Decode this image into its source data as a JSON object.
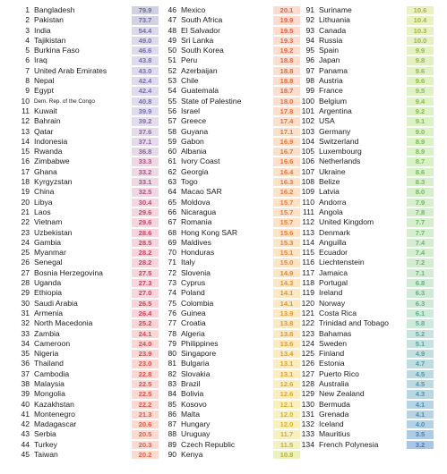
{
  "columns": [
    {
      "rows": [
        [
          "1",
          "Bangladesh",
          "79.9"
        ],
        [
          "2",
          "Pakistan",
          "73.7"
        ],
        [
          "3",
          "India",
          "54.4"
        ],
        [
          "4",
          "Tajikistan",
          "49.0"
        ],
        [
          "5",
          "Burkina Faso",
          "46.6"
        ],
        [
          "6",
          "Iraq",
          "43.8"
        ],
        [
          "7",
          "United Arab Emirates",
          "43.0"
        ],
        [
          "8",
          "Nepal",
          "42.4"
        ],
        [
          "9",
          "Egypt",
          "42.4"
        ],
        [
          "10",
          "Dem. Rep. of the Congo",
          "40.8"
        ],
        [
          "11",
          "Kuwait",
          "39.9"
        ],
        [
          "12",
          "Bahrain",
          "39.2"
        ],
        [
          "13",
          "Qatar",
          "37.6"
        ],
        [
          "14",
          "Indonesia",
          "37.1"
        ],
        [
          "15",
          "Rwanda",
          "36.8"
        ],
        [
          "16",
          "Zimbabwe",
          "33.3"
        ],
        [
          "17",
          "Ghana",
          "33.2"
        ],
        [
          "18",
          "Kyrgyzstan",
          "33.1"
        ],
        [
          "19",
          "China",
          "32.5"
        ],
        [
          "20",
          "Libya",
          "30.4"
        ],
        [
          "21",
          "Laos",
          "29.6"
        ],
        [
          "22",
          "Vietnam",
          "29.6"
        ],
        [
          "23",
          "Uzbekistan",
          "28.6"
        ],
        [
          "24",
          "Gambia",
          "28.5"
        ],
        [
          "25",
          "Myanmar",
          "28.2"
        ],
        [
          "26",
          "Senegal",
          "28.2"
        ],
        [
          "27",
          "Bosnia Herzegovina",
          "27.5"
        ],
        [
          "28",
          "Uganda",
          "27.3"
        ],
        [
          "29",
          "Ethiopia",
          "27.0"
        ],
        [
          "30",
          "Saudi Arabia",
          "26.5"
        ],
        [
          "31",
          "Armenia",
          "26.4"
        ],
        [
          "32",
          "North Macedonia",
          "25.2"
        ],
        [
          "33",
          "Zambia",
          "24.1"
        ],
        [
          "34",
          "Cameroon",
          "24.0"
        ],
        [
          "35",
          "Nigeria",
          "23.9"
        ],
        [
          "36",
          "Thailand",
          "23.0"
        ],
        [
          "37",
          "Cambodia",
          "22.8"
        ],
        [
          "38",
          "Malaysia",
          "22.5"
        ],
        [
          "39",
          "Mongolia",
          "22.5"
        ],
        [
          "40",
          "Kazakhstan",
          "22.2"
        ],
        [
          "41",
          "Montenegro",
          "21.3"
        ],
        [
          "42",
          "Madagascar",
          "20.6"
        ],
        [
          "43",
          "Serbia",
          "20.5"
        ],
        [
          "44",
          "Turkey",
          "20.3"
        ],
        [
          "45",
          "Taiwan",
          "20.2"
        ]
      ]
    },
    {
      "rows": [
        [
          "46",
          "Mexico",
          "20.1"
        ],
        [
          "47",
          "South Africa",
          "19.9"
        ],
        [
          "48",
          "El Salvador",
          "19.5"
        ],
        [
          "49",
          "Sri Lanka",
          "19.3"
        ],
        [
          "50",
          "South Korea",
          "19.2"
        ],
        [
          "51",
          "Peru",
          "18.8"
        ],
        [
          "52",
          "Azerbaijan",
          "18.8"
        ],
        [
          "53",
          "Chile",
          "18.8"
        ],
        [
          "54",
          "Guatemala",
          "18.7"
        ],
        [
          "55",
          "State of Palestine",
          "18.0"
        ],
        [
          "56",
          "Israel",
          "17.8"
        ],
        [
          "57",
          "Greece",
          "17.4"
        ],
        [
          "58",
          "Guyana",
          "17.1"
        ],
        [
          "59",
          "Gabon",
          "16.9"
        ],
        [
          "60",
          "Albania",
          "16.7"
        ],
        [
          "61",
          "Ivory Coast",
          "16.6"
        ],
        [
          "62",
          "Georgia",
          "16.4"
        ],
        [
          "63",
          "Togo",
          "16.3"
        ],
        [
          "64",
          "Macao SAR",
          "16.2"
        ],
        [
          "65",
          "Moldova",
          "15.7"
        ],
        [
          "66",
          "Nicaragua",
          "15.7"
        ],
        [
          "67",
          "Romania",
          "15.7"
        ],
        [
          "68",
          "Hong Kong SAR",
          "15.6"
        ],
        [
          "69",
          "Maldives",
          "15.3"
        ],
        [
          "70",
          "Honduras",
          "15.1"
        ],
        [
          "71",
          "Italy",
          "15.0"
        ],
        [
          "72",
          "Slovenia",
          "14.9"
        ],
        [
          "73",
          "Cyprus",
          "14.3"
        ],
        [
          "74",
          "Poland",
          "14.1"
        ],
        [
          "75",
          "Colombia",
          "14.1"
        ],
        [
          "76",
          "Guinea",
          "13.9"
        ],
        [
          "77",
          "Croatia",
          "13.8"
        ],
        [
          "78",
          "Algeria",
          "13.8"
        ],
        [
          "79",
          "Philippines",
          "13.6"
        ],
        [
          "80",
          "Singapore",
          "13.4"
        ],
        [
          "81",
          "Bulgaria",
          "13.1"
        ],
        [
          "82",
          "Slovakia",
          "13.1"
        ],
        [
          "83",
          "Brazil",
          "12.6"
        ],
        [
          "84",
          "Bolivia",
          "12.6"
        ],
        [
          "85",
          "Kosovo",
          "12.1"
        ],
        [
          "86",
          "Malta",
          "12.0"
        ],
        [
          "87",
          "Hungary",
          "12.0"
        ],
        [
          "88",
          "Uruguay",
          "11.7"
        ],
        [
          "89",
          "Czech Republic",
          "11.5"
        ],
        [
          "90",
          "Kenya",
          "10.8"
        ]
      ]
    },
    {
      "rows": [
        [
          "91",
          "Suriname",
          "10.6"
        ],
        [
          "92",
          "Lithuania",
          "10.4"
        ],
        [
          "93",
          "Canada",
          "10.3"
        ],
        [
          "94",
          "Russia",
          "10.0"
        ],
        [
          "95",
          "Spain",
          "9.9"
        ],
        [
          "96",
          "Japan",
          "9.8"
        ],
        [
          "97",
          "Panama",
          "9.6"
        ],
        [
          "98",
          "Austria",
          "9.6"
        ],
        [
          "99",
          "France",
          "9.5"
        ],
        [
          "100",
          "Belgium",
          "9.4"
        ],
        [
          "101",
          "Argentina",
          "9.2"
        ],
        [
          "102",
          "USA",
          "9.1"
        ],
        [
          "103",
          "Germany",
          "9.0"
        ],
        [
          "104",
          "Switzerland",
          "8.9"
        ],
        [
          "105",
          "Luxembourg",
          "8.9"
        ],
        [
          "106",
          "Netherlands",
          "8.7"
        ],
        [
          "107",
          "Ukraine",
          "8.6"
        ],
        [
          "108",
          "Belize",
          "8.3"
        ],
        [
          "109",
          "Latvia",
          "8.0"
        ],
        [
          "110",
          "Andorra",
          "7.9"
        ],
        [
          "111",
          "Angola",
          "7.8"
        ],
        [
          "112",
          "United Kingdom",
          "7.7"
        ],
        [
          "113",
          "Denmark",
          "7.7"
        ],
        [
          "114",
          "Anguilla",
          "7.4"
        ],
        [
          "115",
          "Ecuador",
          "7.4"
        ],
        [
          "116",
          "Liechtenstein",
          "7.2"
        ],
        [
          "117",
          "Jamaica",
          "7.1"
        ],
        [
          "118",
          "Portugal",
          "6.8"
        ],
        [
          "119",
          "Ireland",
          "6.3"
        ],
        [
          "120",
          "Norway",
          "6.3"
        ],
        [
          "121",
          "Costa Rica",
          "6.1"
        ],
        [
          "122",
          "Trinidad and Tobago",
          "5.8"
        ],
        [
          "123",
          "Bahamas",
          "5.2"
        ],
        [
          "124",
          "Sweden",
          "5.1"
        ],
        [
          "125",
          "Finland",
          "4.9"
        ],
        [
          "126",
          "Estonia",
          "4.7"
        ],
        [
          "127",
          "Puerto Rico",
          "4.5"
        ],
        [
          "128",
          "Australia",
          "4.5"
        ],
        [
          "129",
          "New Zealand",
          "4.3"
        ],
        [
          "130",
          "Bermuda",
          "4.1"
        ],
        [
          "131",
          "Grenada",
          "4.1"
        ],
        [
          "132",
          "Iceland",
          "4.0"
        ],
        [
          "133",
          "Mauritius",
          "3.5"
        ],
        [
          "134",
          "French Polynesia",
          "3.2"
        ]
      ]
    }
  ]
}
